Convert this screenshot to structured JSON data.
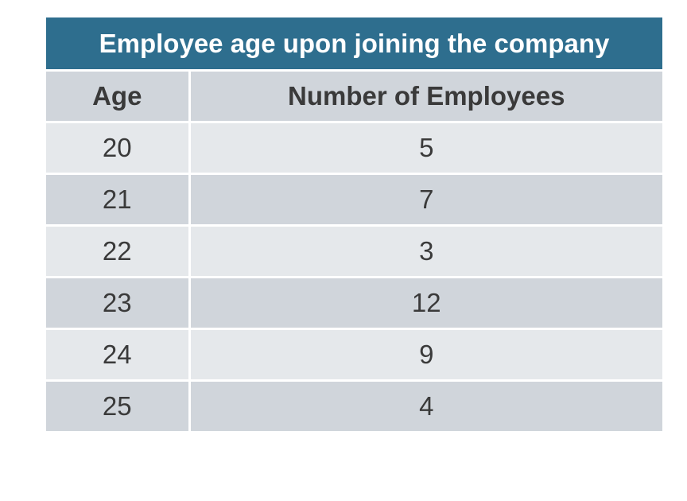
{
  "chart_data": {
    "type": "table",
    "title": "Employee age upon joining the company",
    "columns": [
      "Age",
      "Number of Employees"
    ],
    "rows": [
      [
        "20",
        "5"
      ],
      [
        "21",
        "7"
      ],
      [
        "22",
        "3"
      ],
      [
        "23",
        "12"
      ],
      [
        "24",
        "9"
      ],
      [
        "25",
        "4"
      ]
    ]
  },
  "colors": {
    "title_bg": "#2e6e8e",
    "row_light": "#e5e8eb",
    "row_dark": "#d0d5db"
  }
}
